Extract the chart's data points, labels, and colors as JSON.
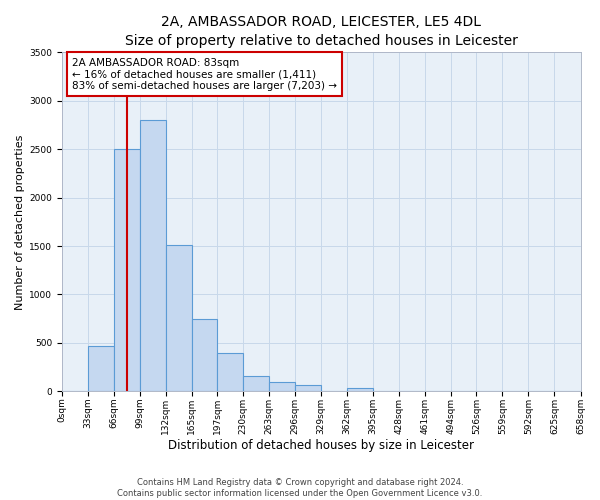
{
  "title": "2A, AMBASSADOR ROAD, LEICESTER, LE5 4DL",
  "subtitle": "Size of property relative to detached houses in Leicester",
  "xlabel": "Distribution of detached houses by size in Leicester",
  "ylabel": "Number of detached properties",
  "bin_edges": [
    0,
    33,
    66,
    99,
    132,
    165,
    197,
    230,
    263,
    296,
    329,
    362,
    395,
    428,
    461,
    494,
    526,
    559,
    592,
    625,
    658
  ],
  "bin_labels": [
    "0sqm",
    "33sqm",
    "66sqm",
    "99sqm",
    "132sqm",
    "165sqm",
    "197sqm",
    "230sqm",
    "263sqm",
    "296sqm",
    "329sqm",
    "362sqm",
    "395sqm",
    "428sqm",
    "461sqm",
    "494sqm",
    "526sqm",
    "559sqm",
    "592sqm",
    "625sqm",
    "658sqm"
  ],
  "bar_heights": [
    0,
    470,
    2500,
    2800,
    1510,
    750,
    400,
    160,
    100,
    65,
    0,
    30,
    0,
    0,
    0,
    0,
    0,
    0,
    0,
    0
  ],
  "bar_color": "#c5d8f0",
  "bar_edge_color": "#5b9bd5",
  "bar_edge_width": 0.8,
  "red_line_x": 83,
  "annotation_text": "2A AMBASSADOR ROAD: 83sqm\n← 16% of detached houses are smaller (1,411)\n83% of semi-detached houses are larger (7,203) →",
  "annotation_box_facecolor": "#ffffff",
  "annotation_box_edgecolor": "#cc0000",
  "ylim": [
    0,
    3500
  ],
  "yticks": [
    0,
    500,
    1000,
    1500,
    2000,
    2500,
    3000,
    3500
  ],
  "xlim": [
    0,
    658
  ],
  "grid_color": "#c8d8ea",
  "ax_facecolor": "#e8f0f8",
  "footer_line1": "Contains HM Land Registry data © Crown copyright and database right 2024.",
  "footer_line2": "Contains public sector information licensed under the Open Government Licence v3.0.",
  "title_fontsize": 10,
  "xlabel_fontsize": 8.5,
  "ylabel_fontsize": 8,
  "tick_fontsize": 6.5,
  "annotation_fontsize": 7.5,
  "footer_fontsize": 6
}
